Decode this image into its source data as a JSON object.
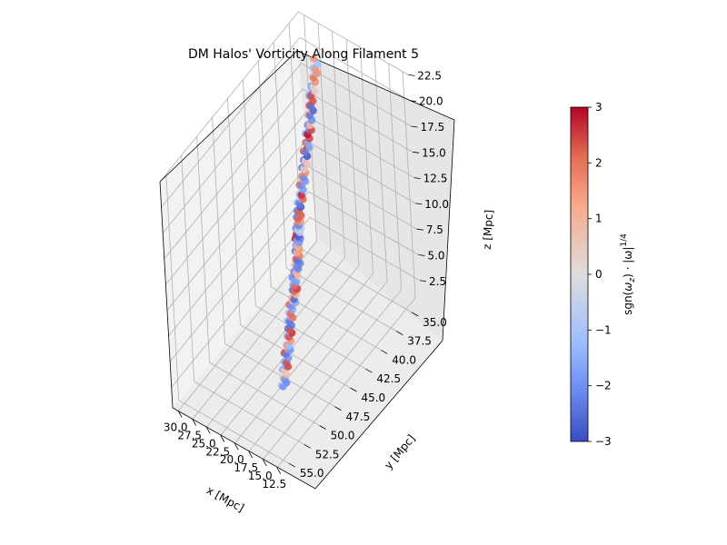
{
  "chart_data": {
    "type": "scatter",
    "projection": "3d",
    "title": "DM Halos' Vorticity Along Filament 5",
    "xlabel": "x [Mpc]",
    "ylabel": "y [Mpc]",
    "zlabel": "z [Mpc]",
    "xlim": [
      11.5,
      31.0
    ],
    "ylim": [
      33.5,
      56.0
    ],
    "zlim": [
      0.5,
      22.5
    ],
    "xticks": [
      "12.5",
      "15.0",
      "17.5",
      "20.0",
      "22.5",
      "25.0",
      "27.5",
      "30.0"
    ],
    "yticks": [
      "35.0",
      "37.5",
      "40.0",
      "42.5",
      "45.0",
      "47.5",
      "50.0",
      "52.5",
      "55.0"
    ],
    "zticks": [
      "2.5",
      "5.0",
      "7.5",
      "10.0",
      "12.5",
      "15.0",
      "17.5",
      "20.0",
      "22.5"
    ],
    "colorbar": {
      "label": "sgn(ω_z) · |ω|^{1/4}",
      "label_main": "sgn(",
      "label_omega_z": "ω",
      "label_z_sub": "z",
      "label_mid": ") · |",
      "label_omega": "ω",
      "label_end": "|",
      "label_exp": "1/4",
      "min": -3,
      "max": 3,
      "ticks": [
        "−3",
        "−2",
        "−1",
        "0",
        "1",
        "2",
        "3"
      ],
      "colormap": "coolwarm",
      "colors": [
        "#3b4cc0",
        "#6788ee",
        "#9abbff",
        "#c9d7f0",
        "#edd1c2",
        "#f7a889",
        "#e26952",
        "#b40426"
      ]
    },
    "series": [
      {
        "points": [
          [
            17.9,
            49.8,
            2.0,
            -1.0
          ],
          [
            17.9,
            49.7,
            2.6,
            -2.1
          ],
          [
            17.8,
            49.6,
            3.2,
            0.8
          ],
          [
            17.8,
            49.5,
            3.8,
            -1.7
          ],
          [
            17.7,
            49.3,
            4.4,
            2.4
          ],
          [
            17.7,
            49.2,
            5.0,
            -2.3
          ],
          [
            17.6,
            49.0,
            5.6,
            1.6
          ],
          [
            17.5,
            48.8,
            6.2,
            -1.5
          ],
          [
            17.6,
            48.7,
            6.8,
            2.6
          ],
          [
            17.6,
            48.6,
            7.3,
            -2.4
          ],
          [
            17.7,
            48.4,
            7.8,
            -1.2
          ],
          [
            17.8,
            48.2,
            8.3,
            2.1
          ],
          [
            17.7,
            48.0,
            8.8,
            -2.0
          ],
          [
            17.6,
            47.8,
            9.3,
            1.1
          ],
          [
            17.5,
            47.6,
            9.8,
            -2.6
          ],
          [
            17.6,
            47.5,
            10.2,
            2.5
          ],
          [
            17.7,
            47.4,
            10.6,
            -1.8
          ],
          [
            17.8,
            47.2,
            11.0,
            -2.7
          ],
          [
            17.8,
            47.0,
            11.4,
            0.9
          ],
          [
            17.7,
            46.8,
            11.8,
            -2.2
          ],
          [
            17.9,
            46.6,
            12.1,
            2.3
          ],
          [
            18.3,
            46.2,
            12.3,
            -2.5
          ],
          [
            18.8,
            45.8,
            12.4,
            1.4
          ],
          [
            19.3,
            45.3,
            12.4,
            -1.9
          ],
          [
            19.8,
            44.8,
            12.3,
            2.8
          ],
          [
            20.3,
            44.3,
            12.2,
            -2.6
          ],
          [
            20.8,
            43.8,
            12.1,
            -0.7
          ],
          [
            21.3,
            43.3,
            12.0,
            1.9
          ],
          [
            21.8,
            42.8,
            12.0,
            -2.3
          ],
          [
            22.3,
            42.4,
            12.1,
            2.2
          ],
          [
            22.6,
            42.0,
            12.4,
            -2.8
          ],
          [
            22.7,
            41.7,
            12.8,
            -1.1
          ],
          [
            22.8,
            41.4,
            13.3,
            2.7
          ],
          [
            22.9,
            41.1,
            13.8,
            -2.0
          ],
          [
            23.0,
            40.8,
            14.3,
            1.7
          ],
          [
            23.2,
            40.4,
            14.6,
            -2.4
          ],
          [
            23.5,
            40.0,
            14.9,
            0.6
          ],
          [
            23.8,
            39.6,
            15.2,
            -2.9
          ],
          [
            24.0,
            39.2,
            15.6,
            2.5
          ],
          [
            24.1,
            38.9,
            16.1,
            -1.6
          ],
          [
            24.3,
            38.6,
            16.5,
            2.9
          ],
          [
            24.5,
            38.2,
            16.9,
            -2.2
          ],
          [
            24.7,
            37.8,
            17.4,
            1.2
          ],
          [
            24.9,
            37.5,
            17.9,
            -2.7
          ],
          [
            25.1,
            37.2,
            18.4,
            2.4
          ],
          [
            25.3,
            36.8,
            18.9,
            -2.1
          ],
          [
            25.4,
            36.5,
            19.4,
            0.4
          ],
          [
            25.5,
            36.2,
            19.9,
            2.0
          ],
          [
            25.6,
            35.9,
            20.4,
            -1.3
          ],
          [
            25.7,
            35.6,
            20.9,
            1.5
          ]
        ]
      }
    ]
  }
}
